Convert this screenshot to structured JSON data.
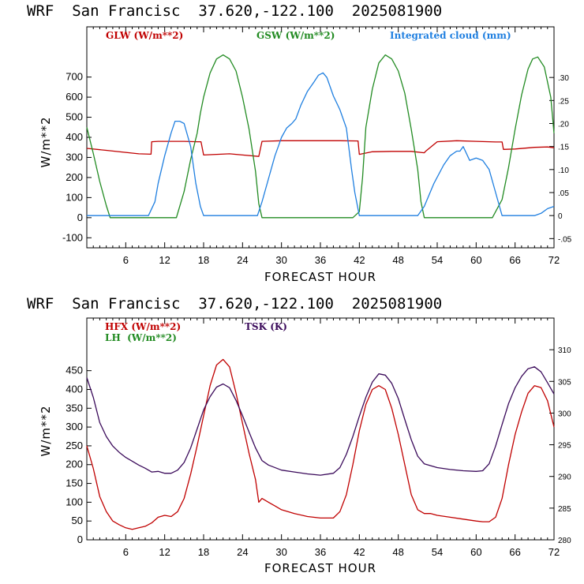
{
  "chart_data": [
    {
      "type": "line",
      "title": "WRF  San Francisc  37.620,-122.100  2025081900",
      "xlabel": "FORECAST HOUR",
      "ylabel": "W/m**2",
      "xlim": [
        0,
        72
      ],
      "xticks": [
        "6",
        "12",
        "18",
        "24",
        "30",
        "36",
        "42",
        "48",
        "54",
        "60",
        "66",
        "72"
      ],
      "ylim": [
        -150,
        950
      ],
      "yticks": [
        "-100",
        "0",
        "100",
        "200",
        "300",
        "400",
        "500",
        "600",
        "700"
      ],
      "y2lim": [
        -0.07,
        0.41
      ],
      "y2ticks": [
        "-.05",
        "0",
        ".05",
        ".10",
        ".15",
        ".20",
        ".25",
        ".30"
      ],
      "grid": false,
      "legend_position": "top",
      "series": [
        {
          "name": "GLW (W/m**2)",
          "color": "#c00000",
          "axis": "left",
          "x": [
            0,
            3,
            6,
            8,
            9.9,
            10,
            11,
            12,
            15,
            17,
            17.6,
            18,
            20,
            22,
            24,
            26.5,
            27,
            30,
            33,
            36,
            39,
            41.8,
            42,
            44,
            47,
            50,
            52,
            52.2,
            54,
            57,
            60,
            63,
            64,
            64.2,
            66,
            69,
            71,
            72
          ],
          "y": [
            345,
            335,
            325,
            318,
            316,
            378,
            380,
            380,
            380,
            378,
            378,
            312,
            315,
            318,
            312,
            305,
            380,
            383,
            383,
            383,
            383,
            382,
            315,
            328,
            330,
            330,
            323,
            330,
            378,
            383,
            380,
            377,
            377,
            340,
            342,
            350,
            352,
            348
          ]
        },
        {
          "name": "GSW (W/m**2)",
          "color": "#228b22",
          "axis": "left",
          "x": [
            0,
            1,
            2,
            3,
            3.6,
            10,
            13.8,
            15,
            16,
            17,
            17.5,
            18,
            19,
            20,
            21,
            22,
            23,
            24,
            25,
            26,
            26.5,
            27,
            30,
            34.5,
            38,
            40,
            41,
            42,
            42.5,
            43,
            44,
            45,
            46,
            47,
            48,
            49,
            50,
            51,
            51.5,
            52,
            55,
            62.5,
            64,
            65,
            66,
            67,
            68,
            68.7,
            69.5,
            70.5,
            71.5,
            72
          ],
          "y": [
            450,
            320,
            180,
            60,
            0,
            0,
            0,
            130,
            290,
            420,
            520,
            600,
            720,
            790,
            810,
            790,
            730,
            600,
            440,
            230,
            70,
            0,
            0,
            0,
            0,
            0,
            0,
            30,
            200,
            450,
            640,
            770,
            810,
            790,
            730,
            620,
            440,
            240,
            80,
            0,
            0,
            0,
            90,
            250,
            440,
            610,
            740,
            790,
            800,
            750,
            600,
            420
          ]
        },
        {
          "name": "Integrated cloud (mm)",
          "color": "#1f7fe0",
          "axis": "right",
          "x": [
            0,
            9.5,
            10.5,
            11,
            12,
            13,
            13.6,
            14.3,
            15,
            16,
            16.8,
            17.5,
            18,
            24,
            26.3,
            27,
            28,
            29,
            29.5,
            30,
            30.8,
            31.6,
            32.2,
            33,
            34,
            35,
            35.7,
            36.4,
            37,
            38,
            39,
            40,
            40.8,
            41.3,
            42,
            51,
            52,
            53.5,
            55,
            56,
            57,
            57.5,
            58,
            58.5,
            59,
            60,
            61,
            62,
            63,
            64,
            69,
            70,
            71,
            72
          ],
          "y": [
            0,
            0,
            0.03,
            0.07,
            0.13,
            0.18,
            0.205,
            0.205,
            0.2,
            0.15,
            0.07,
            0.02,
            0,
            0,
            0,
            0.03,
            0.08,
            0.13,
            0.15,
            0.17,
            0.19,
            0.2,
            0.21,
            0.24,
            0.27,
            0.29,
            0.305,
            0.31,
            0.3,
            0.26,
            0.23,
            0.19,
            0.1,
            0.05,
            0,
            0,
            0.02,
            0.07,
            0.11,
            0.13,
            0.14,
            0.14,
            0.15,
            0.135,
            0.12,
            0.125,
            0.12,
            0.1,
            0.05,
            0,
            0,
            0.005,
            0.015,
            0.02
          ]
        }
      ]
    },
    {
      "type": "line",
      "title": "WRF  San Francisc  37.620,-122.100  2025081900",
      "xlabel": "FORECAST HOUR",
      "ylabel": "W/m**2",
      "xlim": [
        0,
        72
      ],
      "xticks": [
        "6",
        "12",
        "18",
        "24",
        "30",
        "36",
        "42",
        "48",
        "54",
        "60",
        "66",
        "72"
      ],
      "ylim": [
        0,
        590
      ],
      "yticks": [
        "0",
        "50",
        "100",
        "150",
        "200",
        "250",
        "300",
        "350",
        "400",
        "450"
      ],
      "y2lim": [
        280,
        315
      ],
      "y2ticks": [
        "280",
        "285",
        "290",
        "295",
        "300",
        "305",
        "310"
      ],
      "grid": false,
      "legend_position": "top-left",
      "series": [
        {
          "name": "HFX (W/m**2)",
          "color": "#c00000",
          "axis": "left",
          "x": [
            0,
            1,
            2,
            3,
            4,
            5,
            6,
            7,
            8,
            9,
            10,
            11,
            12,
            13,
            14,
            15,
            16,
            17,
            18,
            19,
            20,
            21,
            22,
            23,
            24,
            25,
            26,
            26.5,
            27,
            28,
            29,
            30,
            32,
            34,
            36,
            38,
            39,
            40,
            41,
            42,
            43,
            44,
            45,
            46,
            47,
            48,
            49,
            50,
            51,
            52,
            53,
            54,
            56,
            58,
            60,
            61,
            62,
            63,
            64,
            65,
            66,
            67,
            68,
            69,
            70,
            71,
            72
          ],
          "y": [
            250,
            190,
            115,
            75,
            50,
            40,
            32,
            28,
            32,
            36,
            45,
            60,
            65,
            62,
            75,
            110,
            175,
            250,
            330,
            410,
            465,
            480,
            460,
            390,
            310,
            230,
            160,
            100,
            110,
            100,
            90,
            80,
            70,
            62,
            58,
            58,
            75,
            120,
            200,
            290,
            360,
            400,
            410,
            400,
            350,
            280,
            200,
            120,
            80,
            70,
            70,
            65,
            60,
            55,
            50,
            48,
            48,
            60,
            110,
            200,
            280,
            340,
            390,
            410,
            405,
            370,
            300
          ]
        },
        {
          "name": "LH  (W/m**2)",
          "color": "#228b22",
          "axis": "left",
          "x": [],
          "y": []
        },
        {
          "name": "TSK (K)",
          "color": "#3a0a5a",
          "axis": "right",
          "x": [
            0,
            1,
            2,
            3,
            4,
            5,
            6,
            7,
            8,
            9,
            10,
            11,
            12,
            13,
            14,
            15,
            16,
            17,
            18,
            19,
            20,
            21,
            22,
            23,
            24,
            25,
            26,
            27,
            28,
            30,
            32,
            34,
            36,
            38,
            39,
            40,
            41,
            42,
            43,
            44,
            45,
            46,
            47,
            48,
            49,
            50,
            51,
            52,
            54,
            56,
            58,
            60,
            61,
            62,
            63,
            64,
            65,
            66,
            67,
            68,
            69,
            70,
            71,
            72
          ],
          "y": [
            305.6,
            302.5,
            298.5,
            296.3,
            294.8,
            293.8,
            293,
            292.4,
            291.8,
            291.3,
            290.7,
            290.8,
            290.5,
            290.5,
            291,
            292.2,
            294.5,
            297.5,
            300.5,
            302.6,
            304.1,
            304.6,
            304,
            302,
            299.6,
            297,
            294.5,
            292.5,
            291.8,
            291,
            290.7,
            290.4,
            290.2,
            290.5,
            291.4,
            293.5,
            296.3,
            299.5,
            302.5,
            304.9,
            306.2,
            306,
            304.7,
            302.3,
            299,
            295.8,
            293.2,
            292,
            291.4,
            291.1,
            290.9,
            290.8,
            290.9,
            292,
            294.8,
            298.2,
            301.5,
            304,
            305.8,
            307,
            307.3,
            306.5,
            304.8,
            303
          ]
        }
      ]
    }
  ]
}
